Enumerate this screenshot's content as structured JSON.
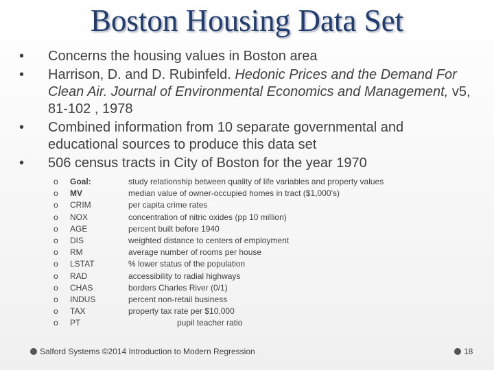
{
  "header": {
    "title": "Boston Housing Data Set"
  },
  "bullets": [
    {
      "runs": [
        {
          "text": "Concerns the housing values in Boston area",
          "italic": false
        }
      ]
    },
    {
      "runs": [
        {
          "text": "Harrison, D. and D. Rubinfeld.  ",
          "italic": false
        },
        {
          "text": "Hedonic Prices and the Demand For Clean Air.  Journal of Environmental Economics and Management,",
          "italic": true
        },
        {
          "text": " v5, 81-102 , 1978",
          "italic": false
        }
      ]
    },
    {
      "runs": [
        {
          "text": "Combined information from 10 separate governmental and educational sources to produce this data set",
          "italic": false
        }
      ]
    },
    {
      "runs": [
        {
          "text": " 506 census tracts in City of Boston for the year 1970",
          "italic": false
        }
      ]
    }
  ],
  "variables": [
    {
      "term": "Goal:",
      "description": "study relationship between quality of life variables and property values",
      "bold": true
    },
    {
      "term": "MV",
      "description": "median value of owner-occupied homes in tract ($1,000’s)",
      "bold": true
    },
    {
      "term": "CRIM",
      "description": "per capita crime rates",
      "bold": false
    },
    {
      "term": "NOX",
      "description": "concentration of nitric oxides (pp 10 million)",
      "bold": false
    },
    {
      "term": "AGE",
      "description": "percent built before 1940",
      "bold": false
    },
    {
      "term": "DIS",
      "description": "weighted distance to centers of employment",
      "bold": false
    },
    {
      "term": "RM",
      "description": "average number of rooms per house",
      "bold": false
    },
    {
      "term": "LSTAT",
      "description": "% lower status of the population",
      "bold": false
    },
    {
      "term": "RAD",
      "description": "accessibility to radial highways",
      "bold": false
    },
    {
      "term": "CHAS",
      "description": "borders Charles River (0/1)",
      "bold": false
    },
    {
      "term": "INDUS",
      "description": "percent non-retail business",
      "bold": false
    },
    {
      "term": "TAX",
      "description": "property tax rate per $10,000",
      "bold": false
    },
    {
      "term": "PT",
      "description": "pupil teacher ratio",
      "bold": false
    }
  ],
  "footer": {
    "text": "Salford Systems ©2014 Introduction to Modern Regression",
    "page": "18"
  }
}
